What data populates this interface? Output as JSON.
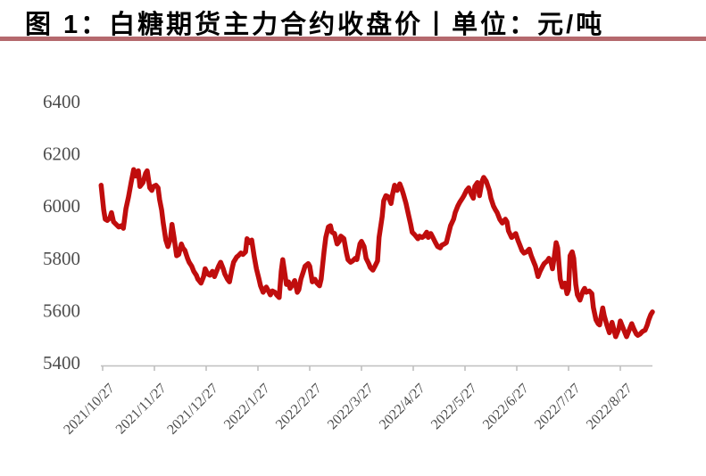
{
  "header": {
    "title": "图 1：白糖期货主力合约收盘价丨单位：元/吨",
    "accent_bar_color": "#B5696D"
  },
  "chart_data": {
    "type": "line",
    "title": "图 1：白糖期货主力合约收盘价丨单位：元/吨",
    "ylabel": "元/吨",
    "xlabel": "",
    "legend_position": "none",
    "grid": false,
    "line_color": "#C00D0D",
    "axis_color": "#BFBFBF",
    "label_color": "#4d4d4d",
    "ylim": [
      5400,
      6400
    ],
    "y_ticks": [
      5400,
      5600,
      5800,
      6000,
      6200,
      6400
    ],
    "x_tick_labels": [
      "2021/10/27",
      "2021/11/27",
      "2021/12/27",
      "2022/1/27",
      "2022/2/27",
      "2022/3/27",
      "2022/4/27",
      "2022/5/27",
      "2022/6/27",
      "2022/7/27",
      "2022/8/27"
    ],
    "x_unit": "months since 2021/10/27 (each tick = 1 month)",
    "x_range": [
      -0.05,
      10.65
    ],
    "series": [
      {
        "name": "白糖期货主力合约收盘价",
        "points": [
          [
            -0.03,
            6080
          ],
          [
            0.02,
            5985
          ],
          [
            0.05,
            5950
          ],
          [
            0.09,
            5945
          ],
          [
            0.14,
            5955
          ],
          [
            0.17,
            5975
          ],
          [
            0.21,
            5940
          ],
          [
            0.26,
            5930
          ],
          [
            0.31,
            5920
          ],
          [
            0.36,
            5925
          ],
          [
            0.4,
            5915
          ],
          [
            0.45,
            5990
          ],
          [
            0.5,
            6035
          ],
          [
            0.55,
            6090
          ],
          [
            0.6,
            6140
          ],
          [
            0.64,
            6115
          ],
          [
            0.69,
            6135
          ],
          [
            0.72,
            6075
          ],
          [
            0.78,
            6090
          ],
          [
            0.83,
            6125
          ],
          [
            0.86,
            6135
          ],
          [
            0.91,
            6070
          ],
          [
            0.95,
            6060
          ],
          [
            0.98,
            6075
          ],
          [
            1.03,
            6080
          ],
          [
            1.07,
            6070
          ],
          [
            1.1,
            6025
          ],
          [
            1.14,
            5985
          ],
          [
            1.17,
            5935
          ],
          [
            1.22,
            5870
          ],
          [
            1.26,
            5845
          ],
          [
            1.31,
            5875
          ],
          [
            1.34,
            5930
          ],
          [
            1.38,
            5880
          ],
          [
            1.43,
            5810
          ],
          [
            1.47,
            5815
          ],
          [
            1.52,
            5855
          ],
          [
            1.55,
            5840
          ],
          [
            1.59,
            5830
          ],
          [
            1.64,
            5800
          ],
          [
            1.67,
            5785
          ],
          [
            1.72,
            5770
          ],
          [
            1.76,
            5750
          ],
          [
            1.81,
            5735
          ],
          [
            1.84,
            5720
          ],
          [
            1.9,
            5705
          ],
          [
            1.95,
            5730
          ],
          [
            1.98,
            5760
          ],
          [
            2.03,
            5740
          ],
          [
            2.07,
            5735
          ],
          [
            2.12,
            5750
          ],
          [
            2.16,
            5730
          ],
          [
            2.19,
            5745
          ],
          [
            2.24,
            5770
          ],
          [
            2.28,
            5785
          ],
          [
            2.33,
            5760
          ],
          [
            2.36,
            5740
          ],
          [
            2.41,
            5720
          ],
          [
            2.45,
            5710
          ],
          [
            2.5,
            5760
          ],
          [
            2.53,
            5785
          ],
          [
            2.59,
            5805
          ],
          [
            2.62,
            5810
          ],
          [
            2.67,
            5820
          ],
          [
            2.71,
            5815
          ],
          [
            2.76,
            5825
          ],
          [
            2.79,
            5875
          ],
          [
            2.84,
            5860
          ],
          [
            2.88,
            5870
          ],
          [
            2.93,
            5805
          ],
          [
            2.97,
            5760
          ],
          [
            3.02,
            5720
          ],
          [
            3.05,
            5695
          ],
          [
            3.1,
            5670
          ],
          [
            3.16,
            5690
          ],
          [
            3.19,
            5680
          ],
          [
            3.24,
            5660
          ],
          [
            3.28,
            5675
          ],
          [
            3.33,
            5670
          ],
          [
            3.36,
            5660
          ],
          [
            3.41,
            5650
          ],
          [
            3.45,
            5750
          ],
          [
            3.48,
            5795
          ],
          [
            3.52,
            5740
          ],
          [
            3.55,
            5700
          ],
          [
            3.59,
            5710
          ],
          [
            3.62,
            5685
          ],
          [
            3.67,
            5700
          ],
          [
            3.71,
            5715
          ],
          [
            3.76,
            5670
          ],
          [
            3.79,
            5680
          ],
          [
            3.83,
            5720
          ],
          [
            3.88,
            5750
          ],
          [
            3.91,
            5770
          ],
          [
            3.97,
            5780
          ],
          [
            4.0,
            5770
          ],
          [
            4.05,
            5710
          ],
          [
            4.1,
            5720
          ],
          [
            4.14,
            5705
          ],
          [
            4.19,
            5695
          ],
          [
            4.22,
            5720
          ],
          [
            4.28,
            5830
          ],
          [
            4.31,
            5880
          ],
          [
            4.36,
            5920
          ],
          [
            4.4,
            5925
          ],
          [
            4.43,
            5900
          ],
          [
            4.48,
            5895
          ],
          [
            4.53,
            5855
          ],
          [
            4.57,
            5865
          ],
          [
            4.6,
            5885
          ],
          [
            4.66,
            5875
          ],
          [
            4.71,
            5820
          ],
          [
            4.74,
            5795
          ],
          [
            4.79,
            5785
          ],
          [
            4.83,
            5790
          ],
          [
            4.88,
            5800
          ],
          [
            4.91,
            5795
          ],
          [
            4.97,
            5855
          ],
          [
            5.0,
            5865
          ],
          [
            5.05,
            5845
          ],
          [
            5.09,
            5800
          ],
          [
            5.14,
            5780
          ],
          [
            5.17,
            5765
          ],
          [
            5.22,
            5755
          ],
          [
            5.26,
            5770
          ],
          [
            5.31,
            5790
          ],
          [
            5.34,
            5880
          ],
          [
            5.4,
            5960
          ],
          [
            5.43,
            6020
          ],
          [
            5.47,
            6040
          ],
          [
            5.52,
            6035
          ],
          [
            5.57,
            6010
          ],
          [
            5.6,
            6045
          ],
          [
            5.64,
            6080
          ],
          [
            5.69,
            6060
          ],
          [
            5.74,
            6085
          ],
          [
            5.78,
            6065
          ],
          [
            5.81,
            6045
          ],
          [
            5.86,
            6010
          ],
          [
            5.91,
            5965
          ],
          [
            5.95,
            5930
          ],
          [
            5.98,
            5900
          ],
          [
            6.03,
            5890
          ],
          [
            6.09,
            5875
          ],
          [
            6.12,
            5885
          ],
          [
            6.17,
            5880
          ],
          [
            6.21,
            5885
          ],
          [
            6.26,
            5900
          ],
          [
            6.29,
            5880
          ],
          [
            6.34,
            5895
          ],
          [
            6.38,
            5880
          ],
          [
            6.43,
            5860
          ],
          [
            6.47,
            5845
          ],
          [
            6.52,
            5840
          ],
          [
            6.55,
            5850
          ],
          [
            6.6,
            5855
          ],
          [
            6.64,
            5860
          ],
          [
            6.69,
            5900
          ],
          [
            6.72,
            5925
          ],
          [
            6.78,
            5950
          ],
          [
            6.81,
            5975
          ],
          [
            6.86,
            6000
          ],
          [
            6.9,
            6015
          ],
          [
            6.95,
            6030
          ],
          [
            6.98,
            6040
          ],
          [
            7.03,
            6060
          ],
          [
            7.07,
            6070
          ],
          [
            7.12,
            6045
          ],
          [
            7.16,
            6030
          ],
          [
            7.19,
            6075
          ],
          [
            7.24,
            6090
          ],
          [
            7.28,
            6040
          ],
          [
            7.33,
            6095
          ],
          [
            7.36,
            6110
          ],
          [
            7.41,
            6095
          ],
          [
            7.47,
            6060
          ],
          [
            7.5,
            6030
          ],
          [
            7.55,
            6000
          ],
          [
            7.59,
            5985
          ],
          [
            7.62,
            5975
          ],
          [
            7.67,
            5950
          ],
          [
            7.72,
            5935
          ],
          [
            7.78,
            5950
          ],
          [
            7.81,
            5940
          ],
          [
            7.84,
            5905
          ],
          [
            7.9,
            5880
          ],
          [
            7.93,
            5885
          ],
          [
            7.98,
            5895
          ],
          [
            8.02,
            5870
          ],
          [
            8.07,
            5845
          ],
          [
            8.1,
            5830
          ],
          [
            8.14,
            5820
          ],
          [
            8.19,
            5825
          ],
          [
            8.24,
            5835
          ],
          [
            8.28,
            5810
          ],
          [
            8.33,
            5785
          ],
          [
            8.36,
            5770
          ],
          [
            8.41,
            5730
          ],
          [
            8.45,
            5750
          ],
          [
            8.5,
            5770
          ],
          [
            8.53,
            5780
          ],
          [
            8.59,
            5790
          ],
          [
            8.62,
            5800
          ],
          [
            8.66,
            5785
          ],
          [
            8.69,
            5760
          ],
          [
            8.72,
            5800
          ],
          [
            8.76,
            5860
          ],
          [
            8.79,
            5840
          ],
          [
            8.84,
            5720
          ],
          [
            8.88,
            5690
          ],
          [
            8.93,
            5705
          ],
          [
            8.97,
            5665
          ],
          [
            9.0,
            5680
          ],
          [
            9.03,
            5810
          ],
          [
            9.07,
            5825
          ],
          [
            9.1,
            5800
          ],
          [
            9.14,
            5700
          ],
          [
            9.17,
            5660
          ],
          [
            9.22,
            5640
          ],
          [
            9.28,
            5675
          ],
          [
            9.31,
            5685
          ],
          [
            9.34,
            5670
          ],
          [
            9.4,
            5675
          ],
          [
            9.45,
            5665
          ],
          [
            9.48,
            5612
          ],
          [
            9.53,
            5565
          ],
          [
            9.57,
            5550
          ],
          [
            9.6,
            5545
          ],
          [
            9.66,
            5610
          ],
          [
            9.69,
            5580
          ],
          [
            9.74,
            5545
          ],
          [
            9.79,
            5515
          ],
          [
            9.84,
            5555
          ],
          [
            9.88,
            5525
          ],
          [
            9.91,
            5500
          ],
          [
            9.97,
            5530
          ],
          [
            10.0,
            5560
          ],
          [
            10.03,
            5545
          ],
          [
            10.09,
            5515
          ],
          [
            10.12,
            5500
          ],
          [
            10.17,
            5525
          ],
          [
            10.22,
            5550
          ],
          [
            10.26,
            5530
          ],
          [
            10.31,
            5510
          ],
          [
            10.34,
            5505
          ],
          [
            10.38,
            5510
          ],
          [
            10.43,
            5520
          ],
          [
            10.48,
            5525
          ],
          [
            10.52,
            5545
          ],
          [
            10.55,
            5565
          ],
          [
            10.59,
            5585
          ],
          [
            10.62,
            5595
          ]
        ]
      }
    ]
  }
}
